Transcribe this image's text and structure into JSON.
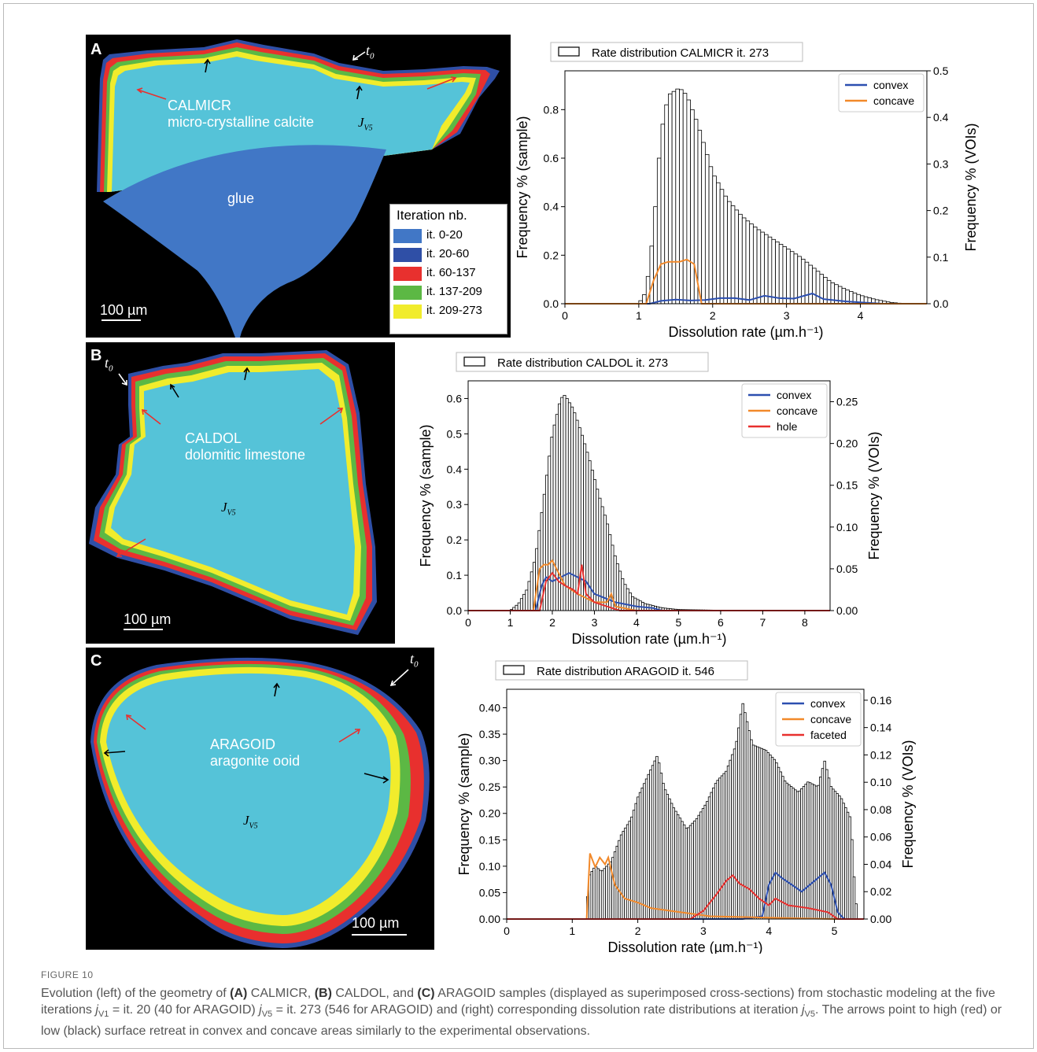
{
  "panels": [
    {
      "letter": "A",
      "sample_name": "CALMICR",
      "sample_desc": "micro-crystalline calcite",
      "glue_label": "glue",
      "jv_label": "J",
      "jv_sub": "V5",
      "t0_label": "t",
      "t0_sub": "0",
      "scalebar_label": "100 µm",
      "legend": {
        "title": "Iteration nb.",
        "items": [
          {
            "label": "it. 0-20",
            "color": "#4177c6"
          },
          {
            "label": "it. 20-60",
            "color": "#2f4fa6"
          },
          {
            "label": "it. 60-137",
            "color": "#e8302e"
          },
          {
            "label": "it. 137-209",
            "color": "#5cb844"
          },
          {
            "label": "it. 209-273",
            "color": "#f1ec2c"
          }
        ]
      }
    },
    {
      "letter": "B",
      "sample_name": "CALDOL",
      "sample_desc": "dolomitic limestone",
      "jv_label": "J",
      "jv_sub": "V5",
      "t0_label": "t",
      "t0_sub": "0",
      "scalebar_label": "100 µm"
    },
    {
      "letter": "C",
      "sample_name": "ARAGOID",
      "sample_desc": "aragonite ooid",
      "jv_label": "J",
      "jv_sub": "V5",
      "t0_label": "t",
      "t0_sub": "0",
      "scalebar_label": "100 µm"
    }
  ],
  "colors": {
    "core": "#55c3d8",
    "yellow": "#f1ec2c",
    "green": "#5cb844",
    "red": "#e8302e",
    "blue": "#2f4fa6",
    "glue": "#4177c6",
    "convex": "#2c4fb0",
    "concave": "#f2892a",
    "hole": "#e8302e",
    "faceted": "#e8302e",
    "bar_edge": "#000000"
  },
  "chart_data": [
    {
      "type": "bar",
      "title": "Rate distribution CALMICR it. 273",
      "xlabel": "Dissolution rate (µm.h⁻¹)",
      "ylabel": "Frequency % (sample)",
      "ylabel2": "Frequency % (VOIs)",
      "xlim": [
        0,
        4.9
      ],
      "ylim": [
        0,
        0.96
      ],
      "ylim2": [
        0,
        0.5
      ],
      "xticks": [
        0,
        1,
        2,
        3,
        4
      ],
      "yticks": [
        0.0,
        0.2,
        0.4,
        0.6,
        0.8
      ],
      "ytick_labels": [
        "0.0",
        "0.2",
        "0.4",
        "0.6",
        "0.8"
      ],
      "yticks2": [
        0.0,
        0.1,
        0.2,
        0.3,
        0.4,
        0.5
      ],
      "ytick2_labels": [
        "0.0",
        "0.1",
        "0.2",
        "0.3",
        "0.4",
        "0.5"
      ],
      "bars": {
        "bin_width": 0.05,
        "points": [
          [
            1.0,
            0.0
          ],
          [
            1.1,
            0.05
          ],
          [
            1.2,
            0.3
          ],
          [
            1.3,
            0.7
          ],
          [
            1.4,
            0.86
          ],
          [
            1.5,
            0.88
          ],
          [
            1.55,
            0.89
          ],
          [
            1.65,
            0.86
          ],
          [
            1.8,
            0.74
          ],
          [
            2.0,
            0.54
          ],
          [
            2.2,
            0.43
          ],
          [
            2.4,
            0.36
          ],
          [
            2.6,
            0.31
          ],
          [
            2.8,
            0.27
          ],
          [
            3.0,
            0.23
          ],
          [
            3.2,
            0.19
          ],
          [
            3.4,
            0.14
          ],
          [
            3.6,
            0.09
          ],
          [
            3.8,
            0.06
          ],
          [
            4.0,
            0.035
          ],
          [
            4.2,
            0.018
          ],
          [
            4.4,
            0.006
          ],
          [
            4.6,
            0.0
          ]
        ]
      },
      "series": [
        {
          "name": "convex",
          "color": "#2c4fb0",
          "points": [
            [
              0,
              0
            ],
            [
              1.15,
              0
            ],
            [
              1.3,
              0.006
            ],
            [
              1.5,
              0.009
            ],
            [
              1.7,
              0.007
            ],
            [
              1.9,
              0.008
            ],
            [
              2.1,
              0.012
            ],
            [
              2.3,
              0.012
            ],
            [
              2.5,
              0.008
            ],
            [
              2.7,
              0.017
            ],
            [
              2.9,
              0.012
            ],
            [
              3.1,
              0.011
            ],
            [
              3.35,
              0.022
            ],
            [
              3.5,
              0.01
            ],
            [
              3.8,
              0.005
            ],
            [
              4.0,
              0.003
            ],
            [
              4.3,
              0
            ],
            [
              4.9,
              0
            ]
          ]
        },
        {
          "name": "concave",
          "color": "#f2892a",
          "points": [
            [
              0,
              0
            ],
            [
              1.1,
              0
            ],
            [
              1.2,
              0.05
            ],
            [
              1.3,
              0.085
            ],
            [
              1.4,
              0.09
            ],
            [
              1.55,
              0.09
            ],
            [
              1.65,
              0.095
            ],
            [
              1.75,
              0.085
            ],
            [
              1.85,
              0
            ],
            [
              4.9,
              0
            ]
          ]
        }
      ],
      "legend_position": "top-right"
    },
    {
      "type": "bar",
      "title": "Rate distribution CALDOL it. 273",
      "xlabel": "Dissolution rate (µm.h⁻¹)",
      "ylabel": "Frequency % (sample)",
      "ylabel2": "Frequency % (VOIs)",
      "xlim": [
        0,
        8.6
      ],
      "ylim": [
        0,
        0.65
      ],
      "ylim2": [
        0,
        0.275
      ],
      "xticks": [
        0,
        1,
        2,
        3,
        4,
        5,
        6,
        7,
        8
      ],
      "yticks": [
        0.0,
        0.1,
        0.2,
        0.3,
        0.4,
        0.5,
        0.6
      ],
      "ytick_labels": [
        "0.0",
        "0.1",
        "0.2",
        "0.3",
        "0.4",
        "0.5",
        "0.6"
      ],
      "yticks2": [
        0.0,
        0.05,
        0.1,
        0.15,
        0.2,
        0.25
      ],
      "ytick2_labels": [
        "0.00",
        "0.05",
        "0.10",
        "0.15",
        "0.20",
        "0.25"
      ],
      "bars": {
        "bin_width": 0.06,
        "points": [
          [
            1.0,
            0.0
          ],
          [
            1.2,
            0.02
          ],
          [
            1.4,
            0.06
          ],
          [
            1.6,
            0.15
          ],
          [
            1.8,
            0.32
          ],
          [
            2.0,
            0.5
          ],
          [
            2.2,
            0.6
          ],
          [
            2.3,
            0.61
          ],
          [
            2.5,
            0.57
          ],
          [
            2.7,
            0.5
          ],
          [
            2.9,
            0.42
          ],
          [
            3.1,
            0.33
          ],
          [
            3.3,
            0.25
          ],
          [
            3.5,
            0.15
          ],
          [
            3.7,
            0.08
          ],
          [
            3.9,
            0.04
          ],
          [
            4.2,
            0.02
          ],
          [
            4.6,
            0.008
          ],
          [
            5.0,
            0.003
          ],
          [
            6.0,
            0.001
          ],
          [
            8.5,
            0.0
          ]
        ]
      },
      "series": [
        {
          "name": "convex",
          "color": "#2c4fb0",
          "points": [
            [
              0,
              0
            ],
            [
              1.6,
              0
            ],
            [
              1.75,
              0.03
            ],
            [
              1.85,
              0.04
            ],
            [
              2.0,
              0.035
            ],
            [
              2.2,
              0.04
            ],
            [
              2.4,
              0.045
            ],
            [
              2.6,
              0.04
            ],
            [
              2.8,
              0.035
            ],
            [
              3.0,
              0.02
            ],
            [
              3.5,
              0.01
            ],
            [
              4.0,
              0.005
            ],
            [
              4.4,
              0.003
            ],
            [
              4.6,
              0
            ],
            [
              8.6,
              0
            ]
          ]
        },
        {
          "name": "concave",
          "color": "#f2892a",
          "points": [
            [
              0,
              0
            ],
            [
              1.55,
              0
            ],
            [
              1.7,
              0.05
            ],
            [
              1.8,
              0.055
            ],
            [
              1.9,
              0.055
            ],
            [
              2.0,
              0.06
            ],
            [
              2.1,
              0.05
            ],
            [
              2.3,
              0.03
            ],
            [
              2.6,
              0.02
            ],
            [
              3.0,
              0.01
            ],
            [
              3.3,
              0.01
            ],
            [
              3.4,
              0.02
            ],
            [
              3.5,
              0.005
            ],
            [
              4.0,
              0
            ],
            [
              8.6,
              0
            ]
          ]
        },
        {
          "name": "hole",
          "color": "#e8302e",
          "points": [
            [
              0,
              0
            ],
            [
              1.7,
              0
            ],
            [
              1.85,
              0.035
            ],
            [
              2.0,
              0.045
            ],
            [
              2.15,
              0.035
            ],
            [
              2.3,
              0.03
            ],
            [
              2.5,
              0.025
            ],
            [
              2.6,
              0.02
            ],
            [
              2.7,
              0.055
            ],
            [
              2.8,
              0.02
            ],
            [
              3.0,
              0.01
            ],
            [
              3.3,
              0.005
            ],
            [
              3.6,
              0
            ],
            [
              8.6,
              0
            ]
          ]
        }
      ],
      "legend_position": "top-right"
    },
    {
      "type": "bar",
      "title": "Rate distribution ARAGOID it. 546",
      "xlabel": "Dissolution rate (µm.h⁻¹)",
      "ylabel": "Frequency % (sample)",
      "ylabel2": "Frequency % (VOIs)",
      "xlim": [
        0,
        5.45
      ],
      "ylim": [
        0,
        0.435
      ],
      "ylim2": [
        0,
        0.168
      ],
      "xticks": [
        0,
        1,
        2,
        3,
        4,
        5
      ],
      "yticks": [
        0.0,
        0.05,
        0.1,
        0.15,
        0.2,
        0.25,
        0.3,
        0.35,
        0.4
      ],
      "ytick_labels": [
        "0.00",
        "0.05",
        "0.10",
        "0.15",
        "0.20",
        "0.25",
        "0.30",
        "0.35",
        "0.40"
      ],
      "yticks2": [
        0.0,
        0.02,
        0.04,
        0.06,
        0.08,
        0.1,
        0.12,
        0.14,
        0.16
      ],
      "ytick2_labels": [
        "0.00",
        "0.02",
        "0.04",
        "0.06",
        "0.08",
        "0.10",
        "0.12",
        "0.14",
        "0.16"
      ],
      "bars": {
        "bin_width": 0.032,
        "points": [
          [
            1.22,
            0.0
          ],
          [
            1.25,
            0.08
          ],
          [
            1.35,
            0.1
          ],
          [
            1.45,
            0.09
          ],
          [
            1.6,
            0.11
          ],
          [
            1.75,
            0.16
          ],
          [
            1.9,
            0.19
          ],
          [
            2.0,
            0.23
          ],
          [
            2.15,
            0.27
          ],
          [
            2.3,
            0.31
          ],
          [
            2.4,
            0.25
          ],
          [
            2.55,
            0.21
          ],
          [
            2.75,
            0.17
          ],
          [
            2.9,
            0.19
          ],
          [
            3.05,
            0.22
          ],
          [
            3.2,
            0.26
          ],
          [
            3.35,
            0.28
          ],
          [
            3.5,
            0.33
          ],
          [
            3.6,
            0.41
          ],
          [
            3.75,
            0.33
          ],
          [
            3.95,
            0.32
          ],
          [
            4.1,
            0.3
          ],
          [
            4.25,
            0.26
          ],
          [
            4.45,
            0.24
          ],
          [
            4.6,
            0.26
          ],
          [
            4.75,
            0.25
          ],
          [
            4.85,
            0.3
          ],
          [
            4.95,
            0.25
          ],
          [
            5.1,
            0.23
          ],
          [
            5.25,
            0.19
          ],
          [
            5.3,
            0.08
          ],
          [
            5.35,
            0.0
          ]
        ]
      },
      "series": [
        {
          "name": "convex",
          "color": "#2c4fb0",
          "points": [
            [
              0,
              0
            ],
            [
              3.6,
              0
            ],
            [
              3.9,
              0.002
            ],
            [
              4.0,
              0.025
            ],
            [
              4.1,
              0.034
            ],
            [
              4.2,
              0.03
            ],
            [
              4.35,
              0.025
            ],
            [
              4.5,
              0.02
            ],
            [
              4.7,
              0.028
            ],
            [
              4.85,
              0.034
            ],
            [
              4.95,
              0.025
            ],
            [
              5.05,
              0.005
            ],
            [
              5.15,
              0
            ],
            [
              5.45,
              0
            ]
          ]
        },
        {
          "name": "concave",
          "color": "#f2892a",
          "points": [
            [
              0,
              0
            ],
            [
              1.22,
              0
            ],
            [
              1.27,
              0.048
            ],
            [
              1.35,
              0.038
            ],
            [
              1.42,
              0.045
            ],
            [
              1.5,
              0.04
            ],
            [
              1.55,
              0.045
            ],
            [
              1.65,
              0.025
            ],
            [
              1.8,
              0.015
            ],
            [
              2.0,
              0.012
            ],
            [
              2.2,
              0.008
            ],
            [
              2.5,
              0.006
            ],
            [
              2.8,
              0.004
            ],
            [
              3.1,
              0.002
            ],
            [
              4.0,
              0.001
            ],
            [
              5.0,
              0
            ],
            [
              5.45,
              0
            ]
          ]
        },
        {
          "name": "faceted",
          "color": "#e8302e",
          "points": [
            [
              0,
              0
            ],
            [
              2.8,
              0
            ],
            [
              3.0,
              0.006
            ],
            [
              3.2,
              0.018
            ],
            [
              3.35,
              0.028
            ],
            [
              3.45,
              0.032
            ],
            [
              3.55,
              0.026
            ],
            [
              3.7,
              0.022
            ],
            [
              3.85,
              0.015
            ],
            [
              4.0,
              0.01
            ],
            [
              4.1,
              0.015
            ],
            [
              4.3,
              0.01
            ],
            [
              4.6,
              0.008
            ],
            [
              4.9,
              0.005
            ],
            [
              5.05,
              0
            ],
            [
              5.45,
              0
            ]
          ]
        }
      ],
      "legend_position": "top-right"
    }
  ],
  "caption": {
    "head": "FIGURE 10",
    "t1": "Evolution (left) of the geometry of ",
    "a": "(A)",
    "t2": " CALMICR, ",
    "b": "(B)",
    "t3": " CALDOL, and ",
    "c": "(C)",
    "t4": " ARAGOID samples (displayed as superimposed cross-sections) from stochastic modeling at the five iterations ",
    "j1": "j",
    "j1sub": "V1",
    "t5": " = it. 20 (40 for ARAGOID) ",
    "j5": "j",
    "j5sub": "V5",
    "t6": " = it. 273 (546 for ARAGOID) and (right) corresponding dissolution rate distributions at iteration ",
    "j6": "j",
    "j6sub": "V5",
    "t7": ". The arrows point to high (red) or low (black) surface retreat in convex and concave areas similarly to the experimental observations."
  }
}
